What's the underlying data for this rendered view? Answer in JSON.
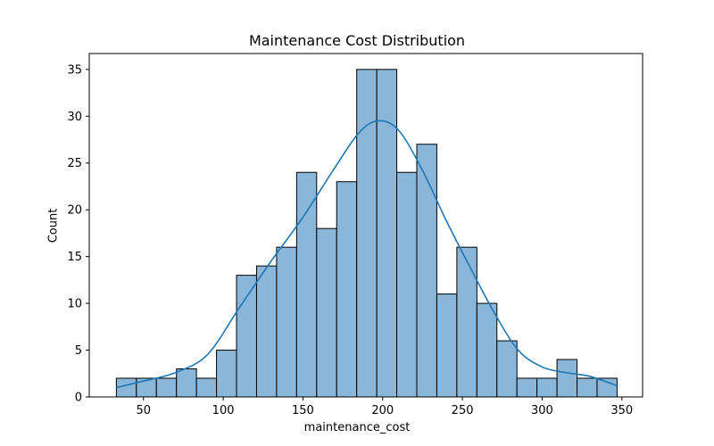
{
  "chart_data": {
    "type": "bar",
    "title": "Maintenance Cost Distribution",
    "xlabel": "maintenance_cost",
    "ylabel": "Count",
    "bin_start": 33,
    "bin_width": 12.56,
    "counts": [
      2,
      2,
      2,
      3,
      2,
      5,
      13,
      14,
      16,
      24,
      18,
      23,
      35,
      35,
      24,
      27,
      11,
      16,
      10,
      6,
      2,
      2,
      4,
      2,
      2
    ],
    "xlim": [
      16,
      363
    ],
    "ylim": [
      0,
      36.7
    ],
    "xticks": [
      50,
      100,
      150,
      200,
      250,
      300,
      350
    ],
    "yticks": [
      0,
      5,
      10,
      15,
      20,
      25,
      30,
      35
    ],
    "kde": {
      "x": [
        33,
        50,
        70,
        90,
        110,
        130,
        150,
        170,
        185,
        197,
        210,
        225,
        240,
        255,
        270,
        285,
        300,
        315,
        330,
        347
      ],
      "y": [
        1.0,
        1.7,
        2.6,
        4.5,
        9.5,
        14.5,
        19.2,
        24.5,
        28.2,
        29.5,
        28.5,
        24.2,
        18.8,
        13.8,
        9.0,
        5.0,
        3.2,
        2.6,
        2.2,
        1.2
      ]
    },
    "bar_color": "#89b6d9",
    "bar_edge": "#000000",
    "line_color": "#1f77b4",
    "grid": false
  }
}
